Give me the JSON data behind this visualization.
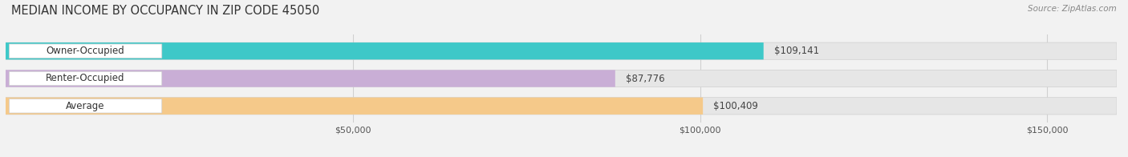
{
  "title": "MEDIAN INCOME BY OCCUPANCY IN ZIP CODE 45050",
  "source": "Source: ZipAtlas.com",
  "categories": [
    "Owner-Occupied",
    "Renter-Occupied",
    "Average"
  ],
  "values": [
    109141,
    87776,
    100409
  ],
  "labels": [
    "$109,141",
    "$87,776",
    "$100,409"
  ],
  "bar_colors": [
    "#3ec8c8",
    "#c9aed6",
    "#f5c98a"
  ],
  "background_color": "#f2f2f2",
  "bar_bg_color": "#e6e6e6",
  "label_box_color": "#ffffff",
  "xlim": [
    0,
    160000
  ],
  "xtick_values": [
    50000,
    100000,
    150000
  ],
  "xtick_labels": [
    "$50,000",
    "$100,000",
    "$150,000"
  ],
  "title_fontsize": 10.5,
  "label_fontsize": 8.5,
  "cat_fontsize": 8.5,
  "tick_fontsize": 8,
  "source_fontsize": 7.5
}
